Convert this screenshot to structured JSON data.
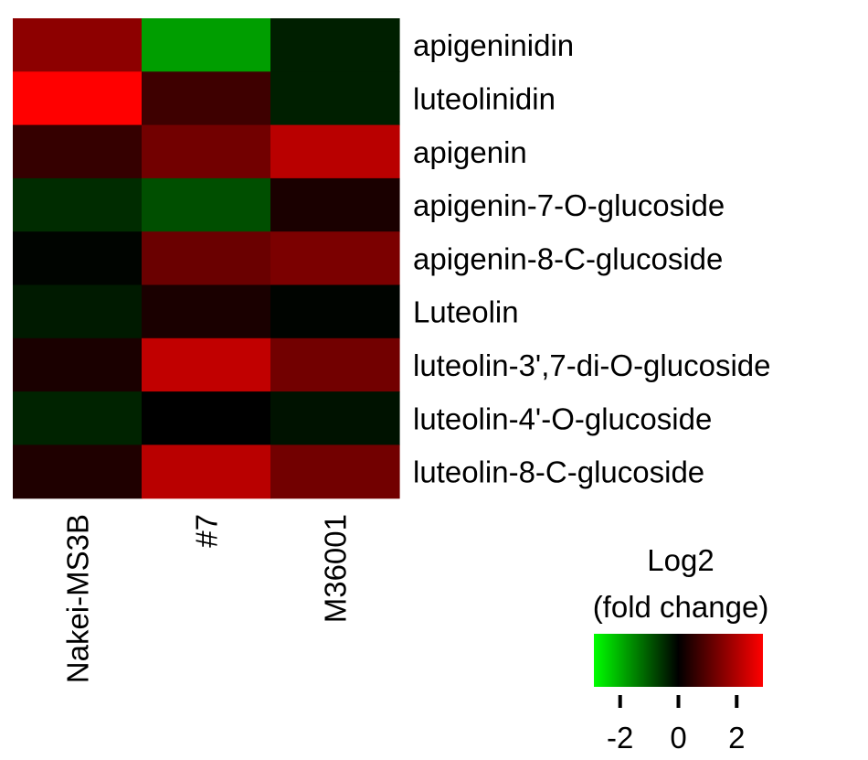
{
  "chart_data": {
    "type": "heatmap",
    "columns": [
      "Nakei-MS3B",
      "#7",
      "M36001"
    ],
    "rows": [
      "apigeninidin",
      "luteolinidin",
      "apigenin",
      "apigenin-7-O-glucoside",
      "apigenin-8-C-glucoside",
      "Luteolin",
      "luteolin-3',7-di-O-glucoside",
      "luteolin-4'-O-glucoside",
      "luteolin-8-C-glucoside"
    ],
    "values": [
      [
        1.6,
        -1.8,
        -0.35
      ],
      [
        2.9,
        0.7,
        -0.35
      ],
      [
        0.6,
        1.3,
        2.1
      ],
      [
        -0.5,
        -0.9,
        0.3
      ],
      [
        -0.05,
        1.2,
        1.4
      ],
      [
        -0.3,
        0.3,
        -0.05
      ],
      [
        0.3,
        2.2,
        1.3
      ],
      [
        -0.4,
        0.0,
        -0.2
      ],
      [
        0.35,
        2.1,
        1.3
      ]
    ],
    "colorbar": {
      "title_line1": "Log2",
      "title_line2": "(fold change)",
      "min": -2.9,
      "max": 2.9,
      "low_color": "#00ff00",
      "mid_color": "#000000",
      "high_color": "#ff0000",
      "ticks": [
        -2,
        0,
        2
      ],
      "tick_labels": [
        "-2",
        "0",
        "2"
      ]
    }
  }
}
